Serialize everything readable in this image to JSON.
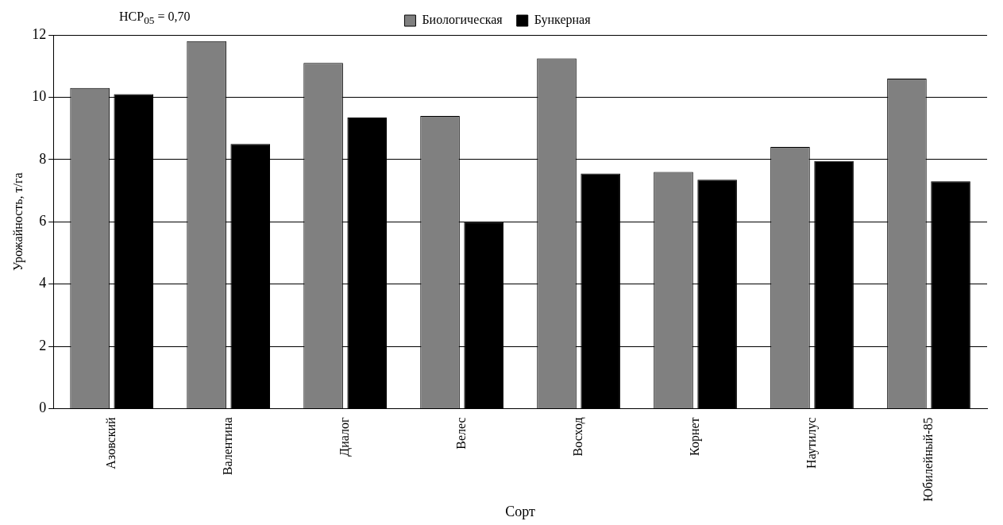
{
  "chart_data": {
    "type": "bar",
    "xlabel": "Сорт",
    "ylabel": "Урожайность, т/га",
    "categories": [
      "Азовский",
      "Валентина",
      "Диалог",
      "Велес",
      "Восход",
      "Корнет",
      "Наутилус",
      "Юбилейный-85"
    ],
    "series": [
      {
        "name": "Биологическая",
        "color": "#808080",
        "values": [
          10.3,
          11.8,
          11.1,
          9.4,
          11.25,
          7.6,
          8.4,
          10.6
        ]
      },
      {
        "name": "Бункерная",
        "color": "#000000",
        "values": [
          10.1,
          8.5,
          9.35,
          6.0,
          7.55,
          7.35,
          7.95,
          7.3
        ]
      }
    ],
    "ylim": [
      0,
      12
    ],
    "yticks": [
      0,
      2,
      4,
      6,
      8,
      10,
      12
    ],
    "grid": "y",
    "legend": "top",
    "annotations": [
      "НСР$_{05}$ = 0,70"
    ]
  }
}
